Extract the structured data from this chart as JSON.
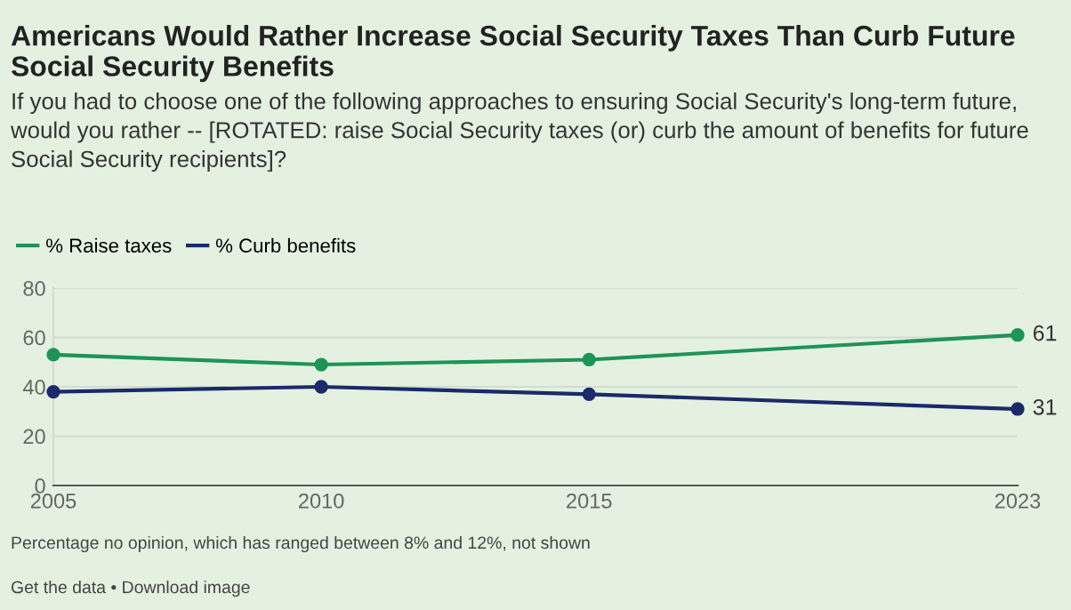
{
  "chart_data": {
    "type": "line",
    "title": "Americans Would Rather Increase Social Security Taxes Than Curb Future Social Security Benefits",
    "subtitle": "If you had to choose one of the following approaches to ensuring Social Security's long-term future, would you rather -- [ROTATED: raise Social Security taxes (or) curb the amount of benefits for future Social Security recipients]?",
    "x": [
      2005,
      2010,
      2015,
      2023
    ],
    "series": [
      {
        "name": "% Raise taxes",
        "color": "#1e9457",
        "values": [
          53,
          49,
          51,
          61
        ],
        "value_labels": [
          null,
          null,
          null,
          "61"
        ]
      },
      {
        "name": "% Curb benefits",
        "color": "#1b2a6b",
        "values": [
          38,
          40,
          37,
          31
        ],
        "value_labels": [
          null,
          null,
          null,
          "31"
        ]
      }
    ],
    "xlim": [
      2005,
      2023
    ],
    "xticks": [
      2005,
      2010,
      2015,
      2023
    ],
    "ylim": [
      0,
      80
    ],
    "yticks": [
      0,
      20,
      40,
      60,
      80
    ],
    "grid": "y",
    "legend": "top left",
    "marker": "circle",
    "line_style": "solid",
    "annotations": [
      "Percentage no opinion, which has ranged between 8% and 12%, not shown",
      "Get the data • Download image"
    ]
  }
}
